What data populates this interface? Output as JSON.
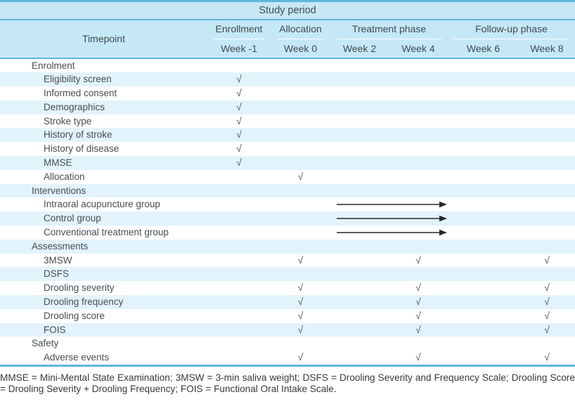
{
  "table": {
    "study_period": "Study period",
    "timepoint_label": "Timepoint",
    "check_symbol": "√",
    "phases": [
      {
        "label": "Enrollment",
        "weeks": [
          "Week -1"
        ]
      },
      {
        "label": "Allocation",
        "weeks": [
          "Week 0"
        ]
      },
      {
        "label": "Treatment phase",
        "weeks": [
          "Week 2",
          "Week 4"
        ]
      },
      {
        "label": "Follow-up phase",
        "weeks": [
          "Week 6",
          "Week 8"
        ]
      }
    ],
    "week_columns": [
      "Week -1",
      "Week 0",
      "Week 2",
      "Week 4",
      "Week 6",
      "Week 8"
    ],
    "rows": [
      {
        "label": "Enrolment",
        "type": "section",
        "shaded": false
      },
      {
        "label": "Eligibility screen",
        "type": "item",
        "shaded": true,
        "checks": [
          0
        ]
      },
      {
        "label": "Informed consent",
        "type": "item",
        "shaded": false,
        "checks": [
          0
        ]
      },
      {
        "label": "Demographics",
        "type": "item",
        "shaded": true,
        "checks": [
          0
        ]
      },
      {
        "label": "Stroke type",
        "type": "item",
        "shaded": false,
        "checks": [
          0
        ]
      },
      {
        "label": "History of stroke",
        "type": "item",
        "shaded": true,
        "checks": [
          0
        ]
      },
      {
        "label": "History of disease",
        "type": "item",
        "shaded": false,
        "checks": [
          0
        ]
      },
      {
        "label": "MMSE",
        "type": "item",
        "shaded": true,
        "checks": [
          0
        ]
      },
      {
        "label": "Allocation",
        "type": "item",
        "shaded": false,
        "checks": [
          1
        ]
      },
      {
        "label": "Interventions",
        "type": "section",
        "shaded": true
      },
      {
        "label": "Intraoral acupuncture group",
        "type": "item",
        "shaded": false,
        "arrow": true
      },
      {
        "label": "Control group",
        "type": "item",
        "shaded": true,
        "arrow": true
      },
      {
        "label": "Conventional treatment group",
        "type": "item",
        "shaded": false,
        "arrow": true
      },
      {
        "label": "Assessments",
        "type": "section",
        "shaded": true
      },
      {
        "label": "3MSW",
        "type": "item",
        "shaded": false,
        "checks": [
          1,
          3,
          5
        ]
      },
      {
        "label": "DSFS",
        "type": "item",
        "shaded": true,
        "checks": []
      },
      {
        "label": "Drooling severity",
        "type": "item",
        "shaded": false,
        "checks": [
          1,
          3,
          5
        ]
      },
      {
        "label": "Drooling frequency",
        "type": "item",
        "shaded": true,
        "checks": [
          1,
          3,
          5
        ]
      },
      {
        "label": "Drooling score",
        "type": "item",
        "shaded": false,
        "checks": [
          1,
          3,
          5
        ]
      },
      {
        "label": "FOIS",
        "type": "item",
        "shaded": true,
        "checks": [
          1,
          3,
          5
        ]
      },
      {
        "label": "Safety",
        "type": "section",
        "shaded": false
      },
      {
        "label": "Adverse events",
        "type": "item",
        "shaded": false,
        "checks": [
          1,
          3,
          5
        ]
      }
    ]
  },
  "footnote": "MMSE = Mini-Mental State Examination; 3MSW = 3-min saliva weight; DSFS = Drooling Severity and Frequency Scale; Drooling Score = Drooling Severity + Drooling Frequency; FOIS = Functional Oral Intake Scale.",
  "colors": {
    "header_bg": "#c6e8f6",
    "row_stripe": "#e2f3fb",
    "rule_blue": "#5eb6de",
    "text": "#474e52",
    "arrow": "#272727"
  }
}
